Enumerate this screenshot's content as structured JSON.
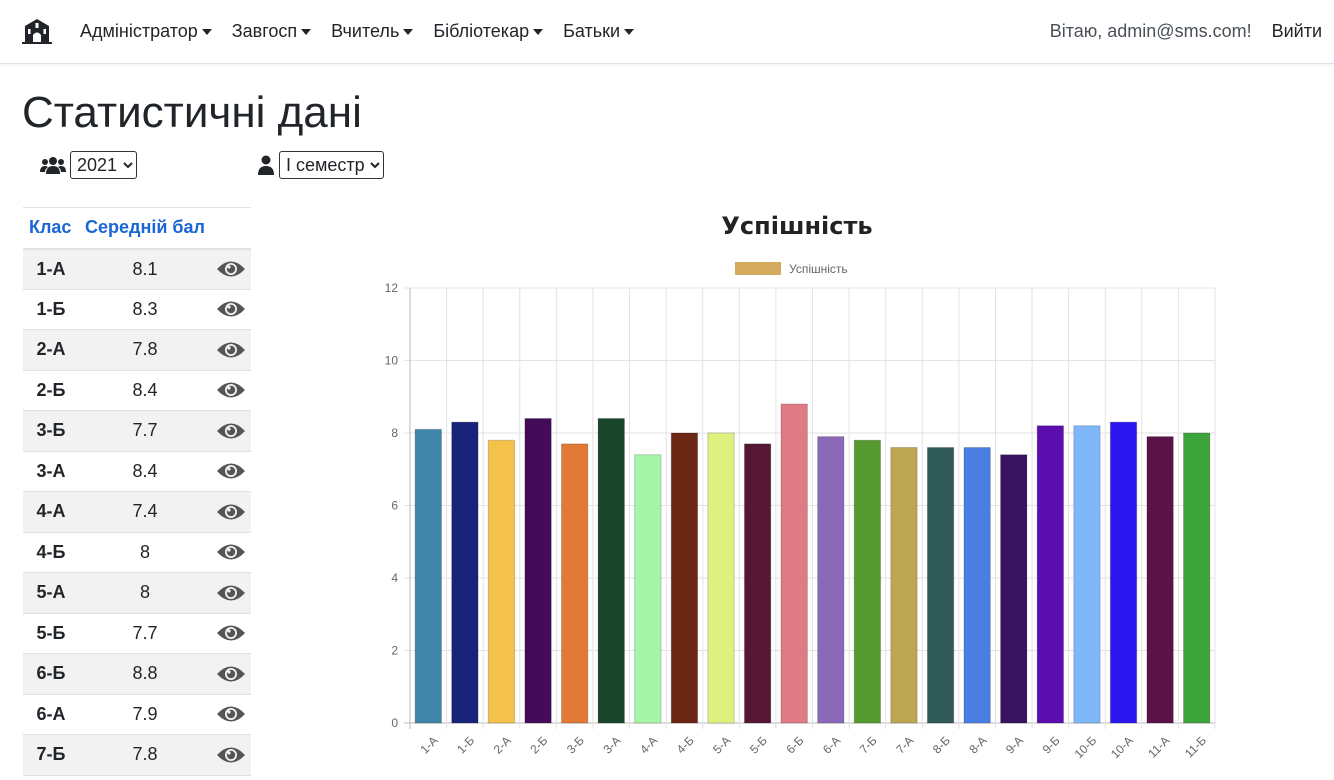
{
  "navbar": {
    "brand_icon": "school-icon",
    "menu": [
      {
        "label": "Адміністратор"
      },
      {
        "label": "Завгосп"
      },
      {
        "label": "Вчитель"
      },
      {
        "label": "Бібліотекар"
      },
      {
        "label": "Батьки"
      }
    ],
    "welcome": "Вітаю, admin@sms.com!",
    "logout": "Вийти"
  },
  "page": {
    "title": "Статистичні дані"
  },
  "filters": {
    "year_icon": "users-icon",
    "year_value": "2021",
    "semester_icon": "user-icon",
    "semester_value": "I семестр"
  },
  "table": {
    "headers": [
      "Клас",
      "Середній бал"
    ],
    "row_icon": "eye-icon",
    "rows": [
      {
        "class": "1-А",
        "score": "8.1"
      },
      {
        "class": "1-Б",
        "score": "8.3"
      },
      {
        "class": "2-А",
        "score": "7.8"
      },
      {
        "class": "2-Б",
        "score": "8.4"
      },
      {
        "class": "3-Б",
        "score": "7.7"
      },
      {
        "class": "3-А",
        "score": "8.4"
      },
      {
        "class": "4-А",
        "score": "7.4"
      },
      {
        "class": "4-Б",
        "score": "8"
      },
      {
        "class": "5-А",
        "score": "8"
      },
      {
        "class": "5-Б",
        "score": "7.7"
      },
      {
        "class": "6-Б",
        "score": "8.8"
      },
      {
        "class": "6-А",
        "score": "7.9"
      },
      {
        "class": "7-Б",
        "score": "7.8"
      }
    ]
  },
  "chart_data": {
    "type": "bar",
    "title": "Успішність",
    "xlabel": "",
    "ylabel": "",
    "ylim": [
      0,
      12
    ],
    "yticks": [
      0,
      2,
      4,
      6,
      8,
      10,
      12
    ],
    "grid": true,
    "legend_position": "top",
    "legend_color": "#d4ab5e",
    "categories": [
      "1-А",
      "1-Б",
      "2-А",
      "2-Б",
      "3-Б",
      "3-А",
      "4-А",
      "4-Б",
      "5-А",
      "5-Б",
      "6-Б",
      "6-А",
      "7-Б",
      "7-А",
      "8-Б",
      "8-А",
      "9-А",
      "9-Б",
      "10-Б",
      "10-А",
      "11-А",
      "11-Б"
    ],
    "series": [
      {
        "name": "Успішність",
        "values": [
          8.1,
          8.3,
          7.8,
          8.4,
          7.7,
          8.4,
          7.4,
          8.0,
          8.0,
          7.7,
          8.8,
          7.9,
          7.8,
          7.6,
          7.6,
          7.6,
          7.4,
          8.2,
          8.2,
          8.3,
          7.9,
          8.0
        ],
        "colors": [
          "#3e85a8",
          "#1a237a",
          "#f4c24a",
          "#440b5a",
          "#e27a35",
          "#18462a",
          "#a7f5a8",
          "#6b2614",
          "#dff07f",
          "#551734",
          "#e07a84",
          "#8a69b8",
          "#55992f",
          "#bda653",
          "#2f5a55",
          "#4b7ee2",
          "#38135f",
          "#5c0dad",
          "#7fb6fa",
          "#2b16ef",
          "#5a1247",
          "#3ca43a"
        ]
      }
    ]
  }
}
